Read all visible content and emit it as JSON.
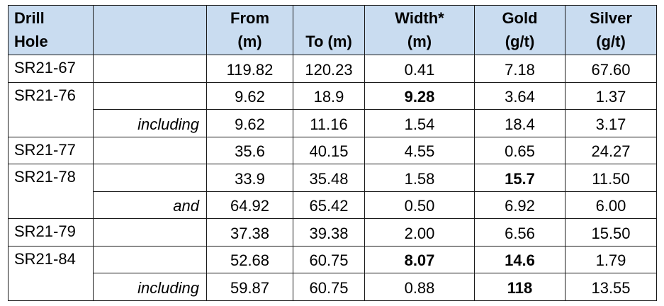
{
  "headers": {
    "hole": [
      "Drill",
      "Hole"
    ],
    "qualifier": "",
    "from": [
      "From",
      "(m)"
    ],
    "to": "To (m)",
    "width": [
      "Width*",
      "(m)"
    ],
    "gold": [
      "Gold",
      "(g/t)"
    ],
    "silver": [
      "Silver",
      "(g/t)"
    ]
  },
  "rows": [
    {
      "hole": "SR21-67",
      "qualifier": "",
      "from": "119.82",
      "to": "120.23",
      "width": "0.41",
      "gold": "7.18",
      "silver": "67.60"
    },
    {
      "hole": "SR21-76",
      "qualifier": "",
      "from": "9.62",
      "to": "18.9",
      "width": "9.28",
      "gold": "3.64",
      "silver": "1.37"
    },
    {
      "hole": "",
      "qualifier": "including",
      "from": "9.62",
      "to": "11.16",
      "width": "1.54",
      "gold": "18.4",
      "silver": "3.17"
    },
    {
      "hole": "SR21-77",
      "qualifier": "",
      "from": "35.6",
      "to": "40.15",
      "width": "4.55",
      "gold": "0.65",
      "silver": "24.27"
    },
    {
      "hole": "SR21-78",
      "qualifier": "",
      "from": "33.9",
      "to": "35.48",
      "width": "1.58",
      "gold": "15.7",
      "silver": "11.50"
    },
    {
      "hole": "",
      "qualifier": "and",
      "from": "64.92",
      "to": "65.42",
      "width": "0.50",
      "gold": "6.92",
      "silver": "6.00"
    },
    {
      "hole": "SR21-79",
      "qualifier": "",
      "from": "37.38",
      "to": "39.38",
      "width": "2.00",
      "gold": "6.56",
      "silver": "15.50"
    },
    {
      "hole": "SR21-84",
      "qualifier": "",
      "from": "52.68",
      "to": "60.75",
      "width": "8.07",
      "gold": "14.6",
      "silver": "1.79"
    },
    {
      "hole": "",
      "qualifier": "including",
      "from": "59.87",
      "to": "60.75",
      "width": "0.88",
      "gold": "118",
      "silver": "13.55"
    }
  ],
  "colors": {
    "header_background": "#c9dcf0",
    "border": "#1a1a1a",
    "text": "#000000"
  }
}
